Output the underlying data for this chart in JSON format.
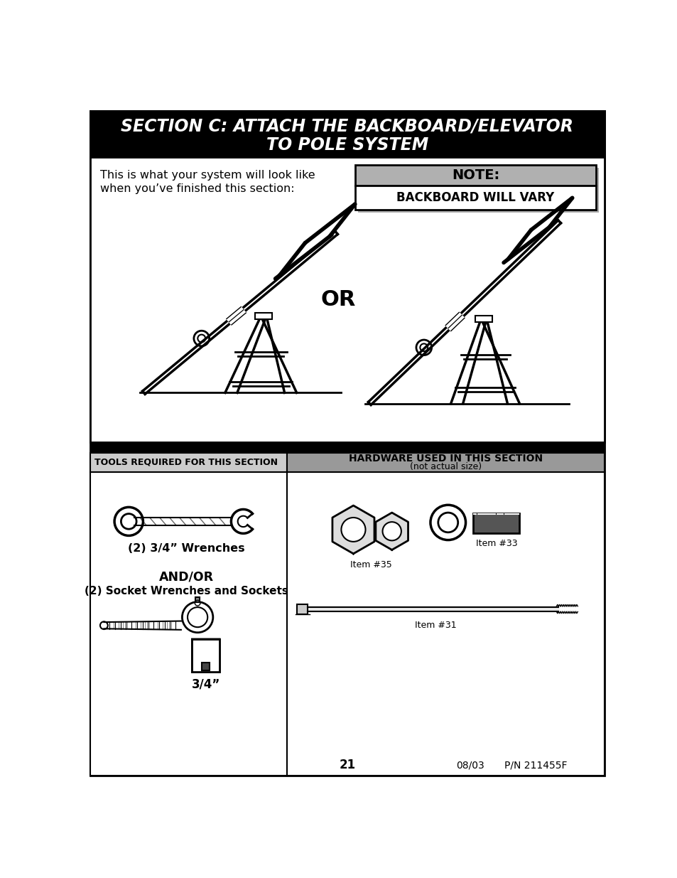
{
  "title_line1": "SECTION C: ATTACH THE BACKBOARD/ELEVATOR",
  "title_line2": "TO POLE SYSTEM",
  "note_label": "NOTE:",
  "note_text": "BACKBOARD WILL VARY",
  "or_text": "OR",
  "intro_line1": "This is what your system will look like",
  "intro_line2": "when you’ve finished this section:",
  "tools_header": "TOOLS REQUIRED FOR THIS SECTION",
  "hardware_header_line1": "HARDWARE USED IN THIS SECTION",
  "hardware_header_line2": "(not actual size)",
  "tool1_label": "(2) 3/4” Wrenches",
  "tool2_label1": "AND/OR",
  "tool2_label2": "(2) Socket Wrenches and Sockets",
  "tool3_label": "3/4”",
  "item31_label": "Item #31",
  "item33_label": "Item #33",
  "item35_label": "Item #35",
  "page_num": "21",
  "date": "08/03",
  "part_num": "P/N 211455F"
}
